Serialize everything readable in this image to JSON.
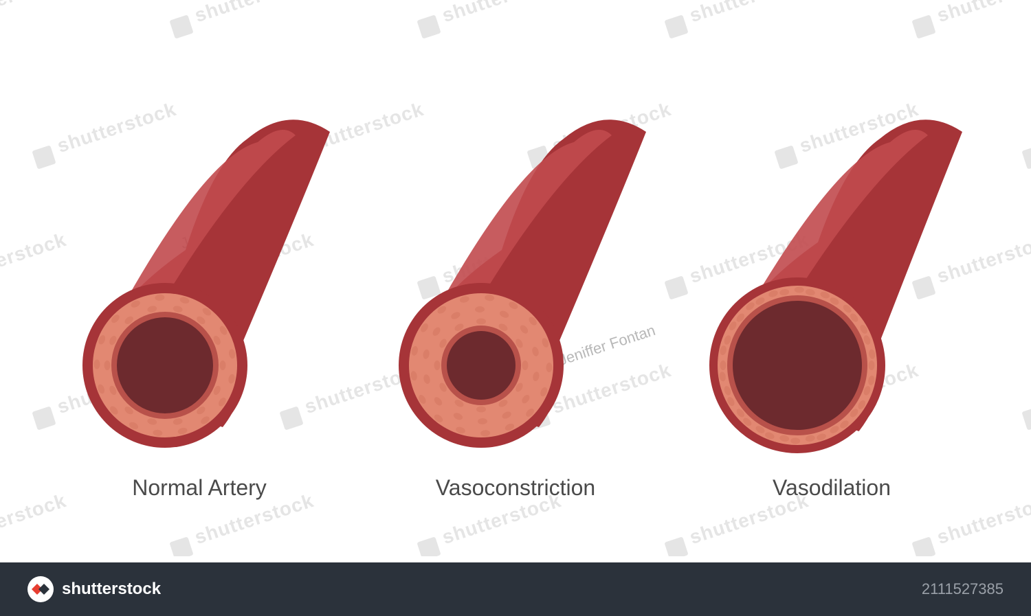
{
  "diagram": {
    "type": "infographic",
    "background_color": "#ffffff",
    "label_color": "#4a4a4a",
    "label_fontsize": 32,
    "colors": {
      "outer_wall": "#a63438",
      "outer_wall_highlight": "#c14a4e",
      "muscle_layer": "#e28872",
      "muscle_texture": "#d47761",
      "inner_ring": "#b8514a",
      "lumen": "#6d2a2e"
    },
    "arteries": [
      {
        "key": "normal",
        "label": "Normal Artery",
        "outer_r": 120,
        "muscle_r": 105,
        "inner_ring_r": 78,
        "lumen_r": 70
      },
      {
        "key": "vasoconstriction",
        "label": "Vasoconstriction",
        "outer_r": 120,
        "muscle_r": 105,
        "inner_ring_r": 58,
        "lumen_r": 50
      },
      {
        "key": "vasodilation",
        "label": "Vasodilation",
        "outer_r": 128,
        "muscle_r": 116,
        "inner_ring_r": 102,
        "lumen_r": 94
      }
    ]
  },
  "watermark": {
    "brand": "shutterstock",
    "attribution": "Jeniffer Fontan",
    "tile_color": "#e5e5e5",
    "attr_color": "#b8b8b8"
  },
  "footer": {
    "bg_color": "#2b323b",
    "logo_text": "shutterstock",
    "image_id": "2111527385",
    "text_color": "#ffffff",
    "id_color": "#9aa0a8"
  }
}
